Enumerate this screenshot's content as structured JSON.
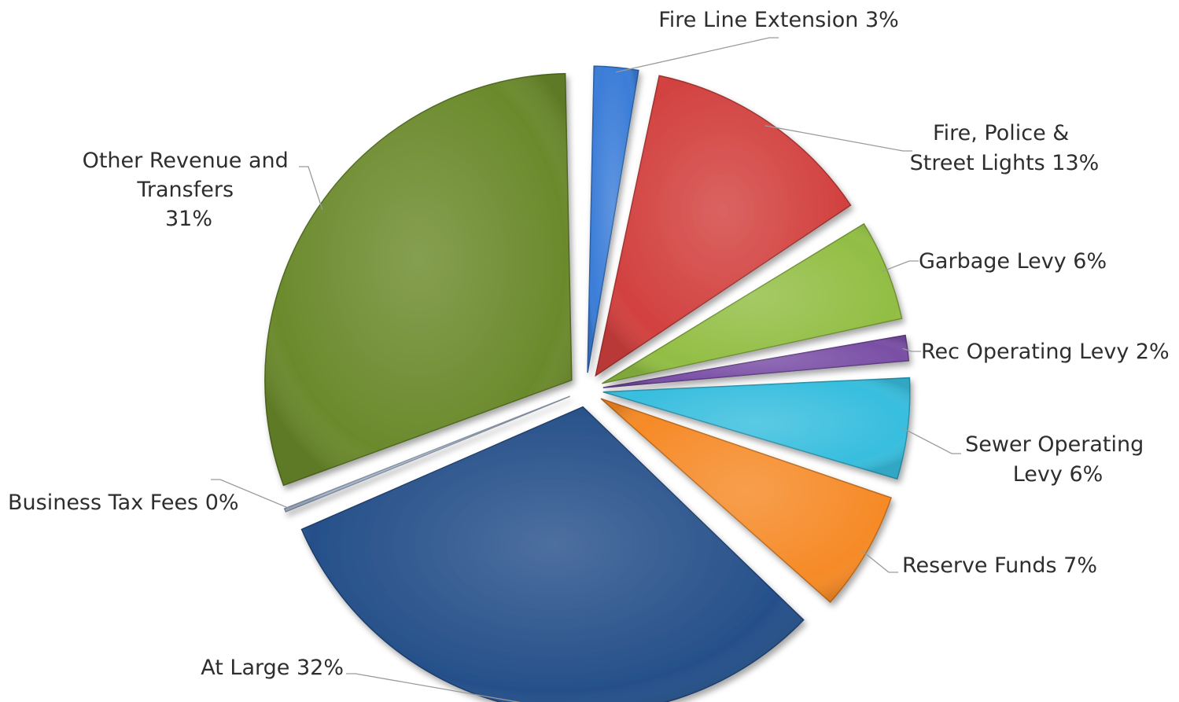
{
  "chart_data": {
    "type": "pie",
    "title": "",
    "slices": [
      {
        "label": "Fire Line Extension 3%",
        "category": "Fire Line Extension",
        "value": 3,
        "color": "#3b7dd8"
      },
      {
        "label": "Fire, Police & Street Lights 13%",
        "category": "Fire, Police & Street Lights",
        "value": 13,
        "color": "#d2413f"
      },
      {
        "label": "Garbage Levy 6%",
        "category": "Garbage Levy",
        "value": 6,
        "color": "#92be44"
      },
      {
        "label": "Rec Operating Levy 2%",
        "category": "Rec Operating Levy",
        "value": 2,
        "color": "#7a4fa6"
      },
      {
        "label": "Sewer Operating Levy 6%",
        "category": "Sewer Operating Levy",
        "value": 6,
        "color": "#38bede"
      },
      {
        "label": "Reserve Funds 7%",
        "category": "Reserve Funds",
        "value": 7,
        "color": "#f68a27"
      },
      {
        "label": "At Large 32%",
        "category": "At Large",
        "value": 32,
        "color": "#26508a"
      },
      {
        "label": "Business Tax Fees 0%",
        "category": "Business Tax Fees",
        "value": 0.3,
        "color": "#a8b8d0"
      },
      {
        "label": "Other Revenue and Transfers 31%",
        "category": "Other Revenue and Transfers",
        "value": 31,
        "color": "#6b8a2c"
      }
    ],
    "legend": "none",
    "data_labels": "outside with leader lines"
  }
}
